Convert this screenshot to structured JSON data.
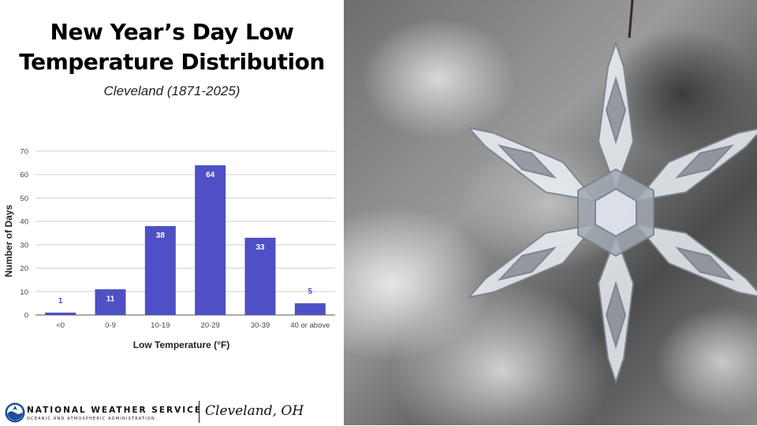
{
  "slide": {
    "title_line1": "New Year’s Day Low",
    "title_line2": "Temperature Distribution",
    "subtitle": "Cleveland (1871-2025)"
  },
  "footer": {
    "org_name": "NATIONAL WEATHER SERVICE",
    "org_sub": "OCEANIC AND ATMOSPHERIC ADMINISTRATION",
    "office": "Cleveland, OH",
    "logo_icon": "noaa-logo-icon"
  },
  "photo": {
    "subject": "snowflake-ornament-icon"
  },
  "chart_data": {
    "type": "bar",
    "categories": [
      "<0",
      "0-9",
      "10-19",
      "20-29",
      "30-39",
      "40 or above"
    ],
    "values": [
      1,
      11,
      38,
      64,
      33,
      5
    ],
    "xlabel": "Low Temperature (°F)",
    "ylabel": "Number of Days",
    "ylim": [
      0,
      70
    ],
    "yticks": [
      0,
      10,
      20,
      30,
      40,
      50,
      60,
      70
    ],
    "grid": true,
    "bar_color": "#4f4fc6",
    "label_color_inside": "#ffffff",
    "label_color_outside": "#4f4fc6"
  }
}
